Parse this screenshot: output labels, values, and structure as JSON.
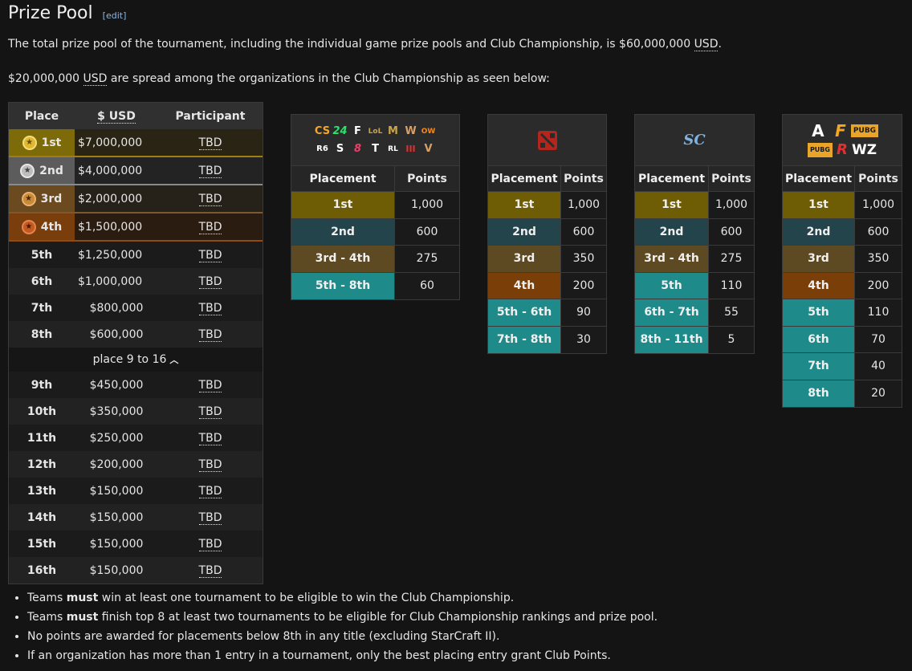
{
  "heading": {
    "title": "Prize Pool",
    "edit_label": "edit"
  },
  "intro": {
    "line1_pre": "The total prize pool of the tournament, including the individual game prize pools and Club Championship, is $60,000,000 ",
    "line1_abbr": "USD",
    "line1_post": ".",
    "line2_pre": "$20,000,000 ",
    "line2_abbr": "USD",
    "line2_post": " are spread among the organizations in the Club Championship as seen below:"
  },
  "prize_table": {
    "headers": {
      "place": "Place",
      "usd": "$ USD",
      "participant": "Participant"
    },
    "top_rows": [
      {
        "place": "1st",
        "usd": "$7,000,000",
        "participant": "TBD"
      },
      {
        "place": "2nd",
        "usd": "$4,000,000",
        "participant": "TBD"
      },
      {
        "place": "3rd",
        "usd": "$2,000,000",
        "participant": "TBD"
      },
      {
        "place": "4th",
        "usd": "$1,500,000",
        "participant": "TBD"
      },
      {
        "place": "5th",
        "usd": "$1,250,000",
        "participant": "TBD"
      },
      {
        "place": "6th",
        "usd": "$1,000,000",
        "participant": "TBD"
      },
      {
        "place": "7th",
        "usd": "$800,000",
        "participant": "TBD"
      },
      {
        "place": "8th",
        "usd": "$600,000",
        "participant": "TBD"
      }
    ],
    "toggle_label": "place 9 to 16",
    "more_rows": [
      {
        "place": "9th",
        "usd": "$450,000",
        "participant": "TBD"
      },
      {
        "place": "10th",
        "usd": "$350,000",
        "participant": "TBD"
      },
      {
        "place": "11th",
        "usd": "$250,000",
        "participant": "TBD"
      },
      {
        "place": "12th",
        "usd": "$200,000",
        "participant": "TBD"
      },
      {
        "place": "13th",
        "usd": "$150,000",
        "participant": "TBD"
      },
      {
        "place": "14th",
        "usd": "$150,000",
        "participant": "TBD"
      },
      {
        "place": "15th",
        "usd": "$150,000",
        "participant": "TBD"
      },
      {
        "place": "16th",
        "usd": "$150,000",
        "participant": "TBD"
      }
    ]
  },
  "points_tables": {
    "headers": {
      "placement": "Placement",
      "points": "Points"
    },
    "multi_game": {
      "logos_top": [
        "CS",
        "24",
        "F",
        "LoL",
        "M",
        "W",
        "OW"
      ],
      "logos_bottom": [
        "R6",
        "S",
        "8",
        "T",
        "RL",
        "III",
        "V"
      ],
      "rows": [
        {
          "placement": "1st",
          "points": "1,000"
        },
        {
          "placement": "2nd",
          "points": "600"
        },
        {
          "placement": "3rd - 4th",
          "points": "275"
        },
        {
          "placement": "5th - 8th",
          "points": "60"
        }
      ]
    },
    "dota": {
      "rows": [
        {
          "placement": "1st",
          "points": "1,000"
        },
        {
          "placement": "2nd",
          "points": "600"
        },
        {
          "placement": "3rd",
          "points": "350"
        },
        {
          "placement": "4th",
          "points": "200"
        },
        {
          "placement": "5th - 6th",
          "points": "90"
        },
        {
          "placement": "7th - 8th",
          "points": "30"
        }
      ]
    },
    "starcraft": {
      "logo_text": "SC",
      "rows": [
        {
          "placement": "1st",
          "points": "1,000"
        },
        {
          "placement": "2nd",
          "points": "600"
        },
        {
          "placement": "3rd - 4th",
          "points": "275"
        },
        {
          "placement": "5th",
          "points": "110"
        },
        {
          "placement": "6th - 7th",
          "points": "55"
        },
        {
          "placement": "8th - 11th",
          "points": "5"
        }
      ]
    },
    "battle_royale": {
      "logos_top": [
        "A",
        "F",
        "PUBG"
      ],
      "logos_bottom": [
        "PUBG",
        "R",
        "WZ"
      ],
      "rows": [
        {
          "placement": "1st",
          "points": "1,000"
        },
        {
          "placement": "2nd",
          "points": "600"
        },
        {
          "placement": "3rd",
          "points": "350"
        },
        {
          "placement": "4th",
          "points": "200"
        },
        {
          "placement": "5th",
          "points": "110"
        },
        {
          "placement": "6th",
          "points": "70"
        },
        {
          "placement": "7th",
          "points": "40"
        },
        {
          "placement": "8th",
          "points": "20"
        }
      ]
    }
  },
  "notes": [
    {
      "pre": "Teams ",
      "bold": "must",
      "post": " win at least one tournament to be eligible to win the Club Championship."
    },
    {
      "pre": "Teams ",
      "bold": "must",
      "post": " finish top 8 at least two tournaments to be eligible for Club Championship rankings and prize pool."
    },
    {
      "pre": "No points are awarded for placements below 8th in any title (excluding StarCraft II).",
      "bold": "",
      "post": ""
    },
    {
      "pre": "If an organization has more than 1 entry in a tournament, only the best placing entry grant Club Points.",
      "bold": "",
      "post": ""
    }
  ],
  "colors": {
    "gold": "#6f5d06",
    "silver": "#23444a",
    "bronze": "#5e4a22",
    "orange": "#7a3e08",
    "teal": "#1f8a8a"
  }
}
